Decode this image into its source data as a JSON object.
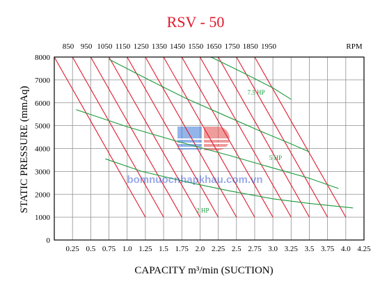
{
  "chart_data": {
    "type": "line",
    "title": "RSV - 50",
    "xlabel": "CAPACITY m³/min (SUCTION)",
    "ylabel": "STATIC PRESSURE (mmAq)",
    "xlim": [
      0,
      4.25
    ],
    "ylim": [
      0,
      8000
    ],
    "x_ticks": [
      "0.25",
      "0.5",
      "0.75",
      "1.0",
      "1.25",
      "1.5",
      "1.75",
      "2.0",
      "2.25",
      "2.5",
      "2.75",
      "3.0",
      "3.25",
      "3.5",
      "3.75",
      "4.0",
      "4.25"
    ],
    "x_tick_values": [
      0.25,
      0.5,
      0.75,
      1.0,
      1.25,
      1.5,
      1.75,
      2.0,
      2.25,
      2.5,
      2.75,
      3.0,
      3.25,
      3.5,
      3.75,
      4.0,
      4.25
    ],
    "y_ticks": [
      "0",
      "1000",
      "2000",
      "3000",
      "4000",
      "5000",
      "6000",
      "7000",
      "8000"
    ],
    "y_tick_values": [
      0,
      1000,
      2000,
      3000,
      4000,
      5000,
      6000,
      7000,
      8000
    ],
    "rpm_label": "RPM",
    "rpm_ticks": [
      "850",
      "950",
      "1050",
      "1150",
      "1250",
      "1350",
      "1450",
      "1550",
      "1650",
      "1750",
      "1850",
      "1950"
    ],
    "grid": true,
    "rpm_series": [
      {
        "name": "850",
        "x": [
          0.0,
          1.25
        ],
        "y": [
          8000,
          1000
        ]
      },
      {
        "name": "950",
        "x": [
          0.25,
          1.5
        ],
        "y": [
          8000,
          1000
        ]
      },
      {
        "name": "1050",
        "x": [
          0.5,
          1.75
        ],
        "y": [
          8000,
          1000
        ]
      },
      {
        "name": "1150",
        "x": [
          0.75,
          2.0
        ],
        "y": [
          8000,
          1000
        ]
      },
      {
        "name": "1250",
        "x": [
          1.0,
          2.25
        ],
        "y": [
          8000,
          1000
        ]
      },
      {
        "name": "1350",
        "x": [
          1.25,
          2.5
        ],
        "y": [
          8000,
          1000
        ]
      },
      {
        "name": "1450",
        "x": [
          1.5,
          2.75
        ],
        "y": [
          8000,
          1000
        ]
      },
      {
        "name": "1550",
        "x": [
          1.75,
          3.0
        ],
        "y": [
          8000,
          1000
        ]
      },
      {
        "name": "1650",
        "x": [
          2.0,
          3.25
        ],
        "y": [
          8000,
          1000
        ]
      },
      {
        "name": "1750",
        "x": [
          2.25,
          3.5
        ],
        "y": [
          8000,
          1000
        ]
      },
      {
        "name": "1850",
        "x": [
          2.5,
          3.75
        ],
        "y": [
          8000,
          1000
        ]
      },
      {
        "name": "1950",
        "x": [
          2.75,
          4.0
        ],
        "y": [
          8000,
          1000
        ]
      }
    ],
    "power_series": [
      {
        "name": "2 HP",
        "x": [
          0.7,
          1.2,
          1.8,
          2.4,
          3.0,
          3.5,
          4.1
        ],
        "y": [
          3550,
          3000,
          2550,
          2150,
          1800,
          1600,
          1400
        ]
      },
      {
        "name": "5 HP",
        "x": [
          0.3,
          1.0,
          1.7,
          2.4,
          3.0,
          3.5,
          3.9
        ],
        "y": [
          5700,
          4950,
          4300,
          3700,
          3150,
          2700,
          2250
        ]
      },
      {
        "name": "7.5 HP",
        "x": [
          0.75,
          1.3,
          1.8,
          2.3,
          2.8,
          3.25,
          3.5
        ],
        "y": [
          7900,
          7000,
          6200,
          5500,
          4800,
          4200,
          3850
        ]
      },
      {
        "name": "",
        "x": [
          2.15,
          2.6,
          3.0,
          3.25
        ],
        "y": [
          8000,
          7300,
          6650,
          6150
        ]
      }
    ],
    "annotations": [
      {
        "text": "7.5 HP",
        "x": 2.65,
        "y": 6350
      },
      {
        "text": "5 HP",
        "x": 2.95,
        "y": 3500
      },
      {
        "text": "2 HP",
        "x": 1.95,
        "y": 1200
      }
    ],
    "colors": {
      "title": "#e0192b",
      "rpm_line": "#e0192b",
      "power_line": "#1a9a3a",
      "grid": "#8f8f8f",
      "axis": "#000000"
    }
  },
  "watermark": {
    "text": "bomnuocnhapkhau.com.vn"
  }
}
